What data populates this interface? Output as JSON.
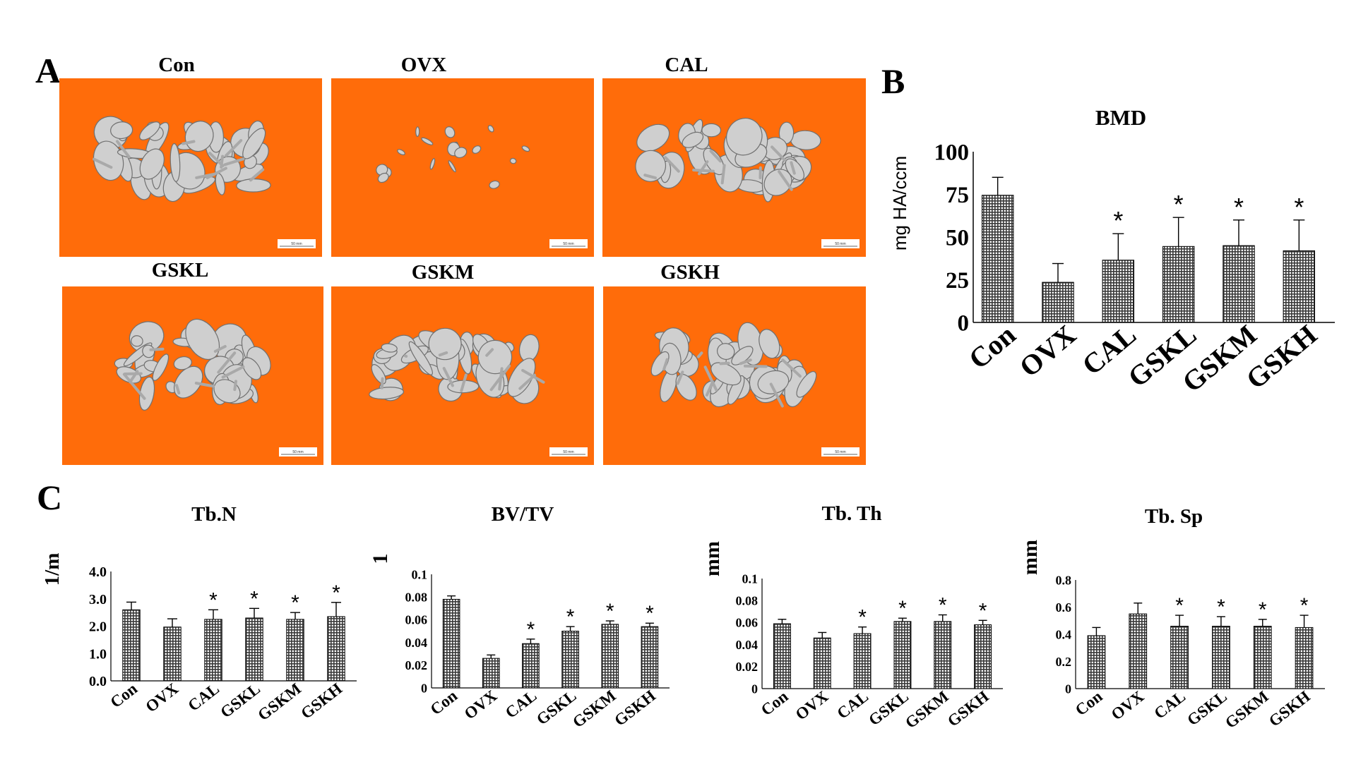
{
  "figure": {
    "panel_a": "A",
    "panel_b": "B",
    "panel_c": "C",
    "image_labels": [
      "Con",
      "OVX",
      "CAL",
      "GSKL",
      "GSKM",
      "GSKH"
    ],
    "image_background": "#ff6c0a",
    "scale_bar_text": "50 mm"
  },
  "chart_data": [
    {
      "id": "bmd",
      "type": "bar",
      "title": "BMD",
      "ylabel": "mg HA/ccm",
      "xlabel": "",
      "categories": [
        "Con",
        "OVX",
        "CAL",
        "GSKL",
        "GSKM",
        "GSKH"
      ],
      "values": [
        74.5,
        23.5,
        36.5,
        44.5,
        45,
        42
      ],
      "errors": [
        10.5,
        11,
        15.5,
        17,
        15,
        18
      ],
      "significance": [
        "",
        "",
        "*",
        "*",
        "*",
        "*"
      ],
      "ylim": [
        0,
        100
      ],
      "yticks": [
        "0",
        "25",
        "50",
        "75",
        "100"
      ],
      "grid": false
    },
    {
      "id": "tbn",
      "type": "bar",
      "title": "Tb.N",
      "ylabel": "1/m",
      "xlabel": "",
      "categories": [
        "Con",
        "OVX",
        "CAL",
        "GSKL",
        "GSKM",
        "GSKH"
      ],
      "values": [
        2.6,
        1.97,
        2.25,
        2.3,
        2.25,
        2.35
      ],
      "errors": [
        0.28,
        0.3,
        0.35,
        0.35,
        0.25,
        0.52
      ],
      "significance": [
        "",
        "",
        "*",
        "*",
        "*",
        "*"
      ],
      "ylim": [
        0,
        4
      ],
      "yticks": [
        "0.0",
        "1.0",
        "2.0",
        "3.0",
        "4.0"
      ],
      "grid": false
    },
    {
      "id": "bvtv",
      "type": "bar",
      "title": "BV/TV",
      "ylabel": "1",
      "xlabel": "",
      "categories": [
        "Con",
        "OVX",
        "CAL",
        "GSKL",
        "GSKM",
        "GSKH"
      ],
      "values": [
        0.078,
        0.026,
        0.039,
        0.05,
        0.056,
        0.054
      ],
      "errors": [
        0.003,
        0.003,
        0.004,
        0.004,
        0.003,
        0.003
      ],
      "significance": [
        "",
        "",
        "*",
        "*",
        "*",
        "*"
      ],
      "ylim": [
        0,
        0.1
      ],
      "yticks": [
        "0",
        "0.02",
        "0.04",
        "0.06",
        "0.08",
        "0.1"
      ],
      "grid": false
    },
    {
      "id": "tbth",
      "type": "bar",
      "title": "Tb. Th",
      "ylabel": "mm",
      "xlabel": "",
      "categories": [
        "Con",
        "OVX",
        "CAL",
        "GSKL",
        "GSKM",
        "GSKH"
      ],
      "values": [
        0.059,
        0.046,
        0.05,
        0.061,
        0.061,
        0.058
      ],
      "errors": [
        0.004,
        0.005,
        0.006,
        0.003,
        0.006,
        0.004
      ],
      "significance": [
        "",
        "",
        "*",
        "*",
        "*",
        "*"
      ],
      "ylim": [
        0,
        0.1
      ],
      "yticks": [
        "0",
        "0.02",
        "0.04",
        "0.06",
        "0.08",
        "0.1"
      ],
      "grid": false
    },
    {
      "id": "tbsp",
      "type": "bar",
      "title": "Tb. Sp",
      "ylabel": "mm",
      "xlabel": "",
      "categories": [
        "Con",
        "OVX",
        "CAL",
        "GSKL",
        "GSKM",
        "GSKH"
      ],
      "values": [
        0.39,
        0.55,
        0.46,
        0.46,
        0.46,
        0.45
      ],
      "errors": [
        0.06,
        0.08,
        0.08,
        0.07,
        0.05,
        0.09
      ],
      "significance": [
        "",
        "",
        "*",
        "*",
        "*",
        "*"
      ],
      "ylim": [
        0,
        0.8
      ],
      "yticks": [
        "0",
        "0.2",
        "0.4",
        "0.6",
        "0.8"
      ],
      "grid": false
    }
  ]
}
